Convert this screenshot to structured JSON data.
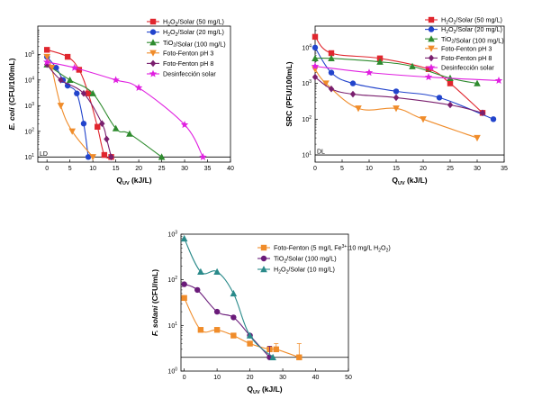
{
  "chart_data": [
    {
      "id": "ecoli",
      "type": "line",
      "xlabel": "Q",
      "xlabel_sub": "UV",
      "xlabel_unit": " (kJ/L)",
      "ylabel_italic": "E. coli",
      "ylabel_rest": " (CFU/100mL)",
      "xlim": [
        -2,
        40
      ],
      "ylim_log10": [
        0.8,
        6.1
      ],
      "log_y": true,
      "xticks": [
        0,
        5,
        10,
        15,
        20,
        25,
        30,
        35,
        40
      ],
      "ydecades": [
        1,
        2,
        3,
        4,
        5
      ],
      "hline": 10,
      "hline_label": "LD",
      "legend_position": "top-right",
      "series": [
        {
          "name_html": [
            "H",
            "2",
            "O",
            "2",
            "/Solar (50 mg/L)"
          ],
          "color": "#e0262e",
          "marker": "square",
          "points": [
            [
              0,
              150000
            ],
            [
              4.5,
              80000
            ],
            [
              7,
              25000
            ],
            [
              9,
              3000
            ],
            [
              11,
              150
            ],
            [
              12.5,
              12
            ],
            [
              14,
              10
            ]
          ]
        },
        {
          "name_html": [
            "H",
            "2",
            "O",
            "2",
            "/Solar (20 mg/L)"
          ],
          "color": "#2244cc",
          "marker": "circle",
          "points": [
            [
              0,
              80000
            ],
            [
              2,
              30000
            ],
            [
              3.5,
              10000
            ],
            [
              4.5,
              6000
            ],
            [
              6.5,
              3000
            ],
            [
              8,
              200
            ],
            [
              9,
              10
            ]
          ]
        },
        {
          "name_html": [
            "TiO",
            "2",
            "",
            "",
            "/Solar (100 mg/L)"
          ],
          "color": "#2e8b2e",
          "marker": "triangle",
          "points": [
            [
              0,
              40000
            ],
            [
              5,
              10000
            ],
            [
              10,
              3000
            ],
            [
              15,
              130
            ],
            [
              18,
              80
            ],
            [
              25,
              10
            ]
          ]
        },
        {
          "name_html": [
            "Foto-Fenton pH 3",
            "",
            "",
            "",
            ""
          ],
          "color": "#f08c2a",
          "marker": "triangle-down",
          "points": [
            [
              0,
              80000
            ],
            [
              1,
              30000
            ],
            [
              3,
              1000
            ],
            [
              5.5,
              100
            ],
            [
              10,
              10
            ]
          ]
        },
        {
          "name_html": [
            "Foto-Fenton pH 8",
            "",
            "",
            "",
            ""
          ],
          "color": "#7a1f6e",
          "marker": "diamond",
          "points": [
            [
              0,
              40000
            ],
            [
              3,
              10000
            ],
            [
              8,
              3000
            ],
            [
              12,
              200
            ],
            [
              13,
              50
            ],
            [
              14,
              10
            ]
          ]
        },
        {
          "name_html": [
            "Desinfección solar",
            "",
            "",
            "",
            ""
          ],
          "color": "#e020e0",
          "marker": "star",
          "points": [
            [
              0,
              50000
            ],
            [
              6,
              30000
            ],
            [
              15,
              10000
            ],
            [
              20,
              5000
            ],
            [
              30,
              180
            ],
            [
              34,
              10
            ]
          ]
        }
      ]
    },
    {
      "id": "src",
      "type": "line",
      "xlabel": "Q",
      "xlabel_sub": "UV",
      "xlabel_unit": " (kJ/L)",
      "ylabel_italic": "",
      "ylabel_rest": "SRC (PFU/100mL)",
      "xlim": [
        0,
        35
      ],
      "ylim_log10": [
        0.8,
        4.6
      ],
      "log_y": true,
      "xticks": [
        0,
        5,
        10,
        15,
        20,
        25,
        30,
        35
      ],
      "ydecades": [
        1,
        2,
        3,
        4
      ],
      "hline": 10,
      "hline_label": "DL",
      "legend_position": "top-right",
      "series": [
        {
          "name_html": [
            "H",
            "2",
            "O",
            "2",
            "/Solar (50 mg/L)"
          ],
          "color": "#e0262e",
          "marker": "square",
          "points": [
            [
              0,
              20000
            ],
            [
              3,
              7000
            ],
            [
              12,
              5000
            ],
            [
              21,
              2500
            ],
            [
              25,
              1000
            ],
            [
              31,
              150
            ]
          ]
        },
        {
          "name_html": [
            "H",
            "2",
            "O",
            "2",
            "/Solar (20 mg/L)"
          ],
          "color": "#2244cc",
          "marker": "circle",
          "points": [
            [
              0,
              10000
            ],
            [
              3,
              2000
            ],
            [
              7,
              1000
            ],
            [
              15,
              600
            ],
            [
              23,
              400
            ],
            [
              33,
              100
            ]
          ]
        },
        {
          "name_html": [
            "TiO",
            "2",
            "",
            "",
            "/Solar (100 mg/L)"
          ],
          "color": "#2e8b2e",
          "marker": "triangle",
          "points": [
            [
              0,
              5000
            ],
            [
              3,
              5000
            ],
            [
              12,
              4000
            ],
            [
              18,
              3000
            ],
            [
              25,
              1400
            ],
            [
              30,
              1000
            ]
          ]
        },
        {
          "name_html": [
            "Foto-Fenton pH 3",
            "",
            "",
            "",
            ""
          ],
          "color": "#f08c2a",
          "marker": "triangle-down",
          "points": [
            [
              0,
              2500
            ],
            [
              2,
              1000
            ],
            [
              8,
              200
            ],
            [
              15,
              200
            ],
            [
              20,
              100
            ],
            [
              30,
              30
            ]
          ]
        },
        {
          "name_html": [
            "Foto-Fenton pH 8",
            "",
            "",
            "",
            ""
          ],
          "color": "#7a1f6e",
          "marker": "diamond",
          "points": [
            [
              0,
              1500
            ],
            [
              3,
              700
            ],
            [
              7,
              500
            ],
            [
              15,
              400
            ],
            [
              25,
              250
            ],
            [
              31,
              150
            ]
          ]
        },
        {
          "name_html": [
            "Desinfección solar",
            "",
            "",
            "",
            ""
          ],
          "color": "#e020e0",
          "marker": "star",
          "points": [
            [
              0,
              3000
            ],
            [
              10,
              2000
            ],
            [
              21,
              1500
            ],
            [
              34,
              1200
            ]
          ]
        }
      ]
    },
    {
      "id": "fsolani",
      "type": "line",
      "xlabel": "Q",
      "xlabel_sub": "UV",
      "xlabel_unit": " (kJ/L)",
      "ylabel_italic": "F. solani",
      "ylabel_rest": " (CFU/mL)",
      "xlim": [
        -1,
        50
      ],
      "ylim_log10": [
        0,
        3
      ],
      "log_y": true,
      "xticks": [
        0,
        10,
        20,
        30,
        40,
        50
      ],
      "ydecades": [
        0,
        1,
        2,
        3
      ],
      "hline": 2,
      "hline_label": "",
      "legend_position": "top-right",
      "series": [
        {
          "name_html": [
            "Foto-Fenton (5 mg/L Fe",
            "3+",
            ":10 mg/L H",
            "2",
            "O",
            "2",
            ")"
          ],
          "color": "#f08c2a",
          "marker": "square",
          "points": [
            [
              0,
              40
            ],
            [
              5,
              8
            ],
            [
              10,
              8
            ],
            [
              15,
              6
            ],
            [
              20,
              4
            ],
            [
              26,
              3
            ],
            [
              28,
              3
            ],
            [
              35,
              2
            ]
          ],
          "errors": [
            [
              28,
              3,
              1
            ],
            [
              35,
              2,
              2
            ]
          ]
        },
        {
          "name_html": [
            "TiO",
            "2",
            "/Solar (100 mg/L)",
            "",
            "",
            "",
            ""
          ],
          "color": "#6a1b7a",
          "marker": "circle",
          "points": [
            [
              0,
              80
            ],
            [
              4,
              60
            ],
            [
              10,
              20
            ],
            [
              15,
              15
            ],
            [
              20,
              6
            ],
            [
              26,
              2
            ]
          ],
          "errors": [
            [
              26,
              2,
              1.5
            ]
          ]
        },
        {
          "name_html": [
            "H",
            "2",
            "O",
            "2",
            "/Solar (10 mg/L)",
            "",
            ""
          ],
          "color": "#2a8a8a",
          "marker": "triangle",
          "points": [
            [
              0,
              800
            ],
            [
              5,
              150
            ],
            [
              10,
              150
            ],
            [
              15,
              50
            ],
            [
              20,
              6
            ],
            [
              27,
              2
            ]
          ]
        }
      ]
    }
  ]
}
